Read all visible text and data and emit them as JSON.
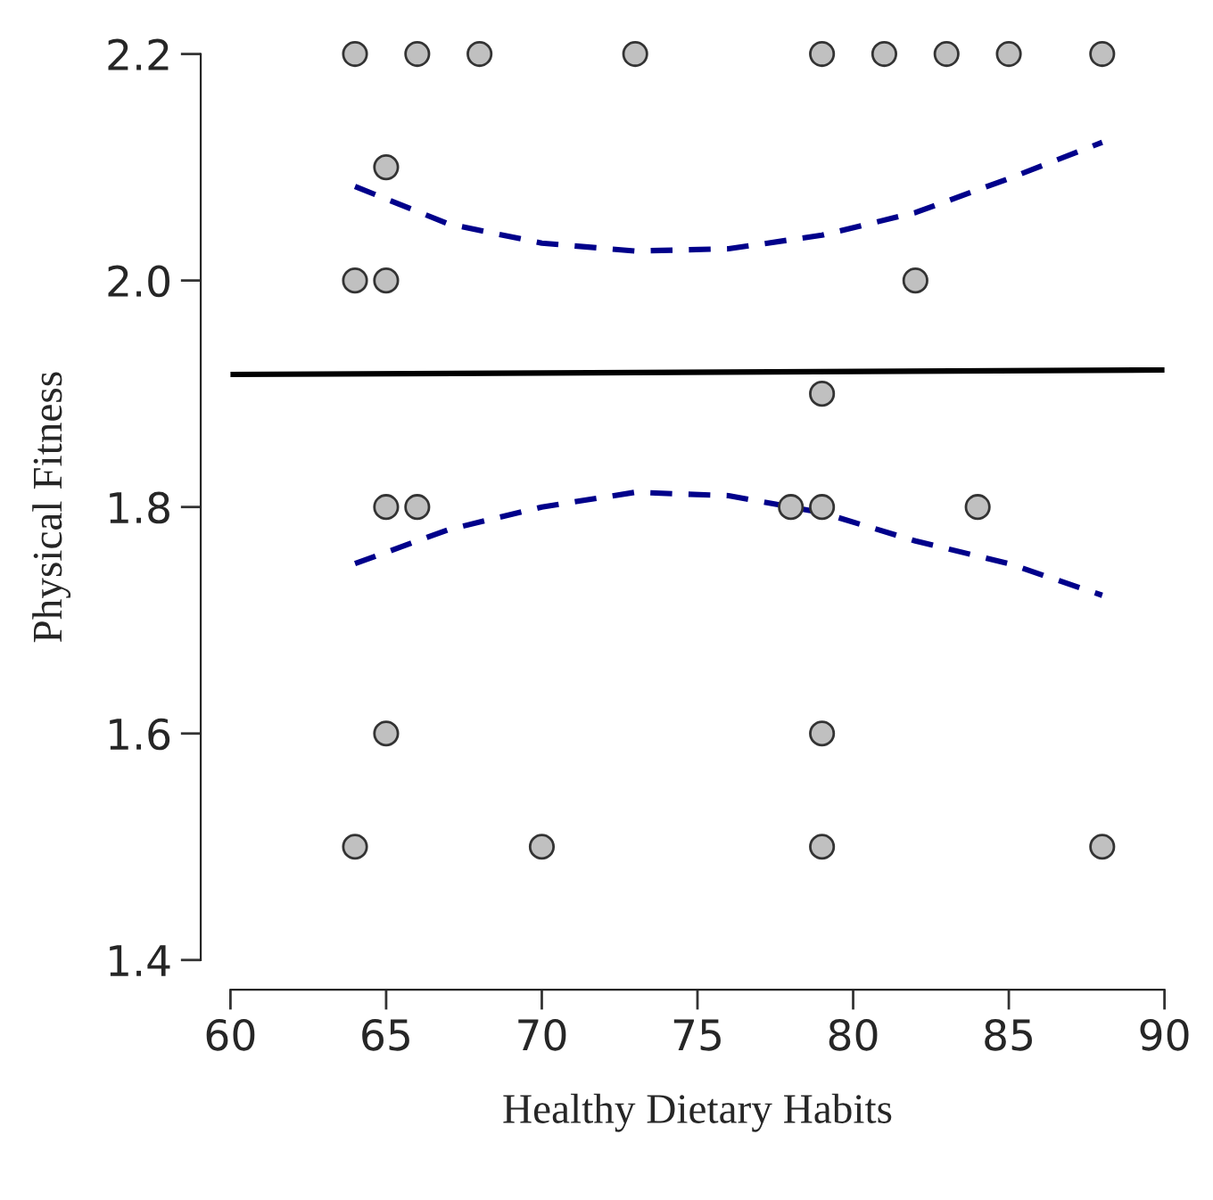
{
  "chart_data": {
    "type": "scatter",
    "xlabel": "Healthy Dietary Habits",
    "ylabel": "Physical Fitness",
    "xlim": [
      60,
      90
    ],
    "xticks": [
      60,
      65,
      70,
      75,
      80,
      85,
      90
    ],
    "ylim": [
      1.4,
      2.2
    ],
    "yticks": [
      1.4,
      1.6,
      1.8,
      {
        "value": 2.0,
        "label": "2.0"
      },
      2.2
    ],
    "grid": false,
    "legend": false,
    "series": [
      {
        "marker": "circle",
        "color": "#c0c0c0",
        "x": [
          64,
          66,
          68,
          73,
          79,
          81,
          83,
          85,
          88,
          65,
          64,
          65,
          82,
          79,
          65,
          66,
          78,
          79,
          84,
          65,
          79,
          64,
          70,
          79,
          88
        ],
        "values": [
          2.2,
          2.2,
          2.2,
          2.2,
          2.2,
          2.2,
          2.2,
          2.2,
          2.2,
          2.1,
          2.0,
          2.0,
          2.0,
          1.9,
          1.8,
          1.8,
          1.8,
          1.8,
          1.8,
          1.6,
          1.6,
          1.5,
          1.5,
          1.5,
          1.5
        ]
      },
      {
        "type": "line",
        "marker": "none",
        "color": "#000000",
        "line_style": "solid",
        "x": [
          60,
          90
        ],
        "values": [
          1.917,
          1.921
        ]
      },
      {
        "type": "line",
        "marker": "none",
        "color": "#00008b",
        "line_style": "dashed",
        "x": [
          64,
          67,
          70,
          73,
          76,
          79,
          82,
          85,
          88
        ],
        "values": [
          2.083,
          2.05,
          2.033,
          2.026,
          2.028,
          2.04,
          2.06,
          2.09,
          2.122
        ]
      },
      {
        "type": "line",
        "marker": "none",
        "color": "#00008b",
        "line_style": "dashed",
        "x": [
          64,
          67,
          70,
          73,
          76,
          79,
          82,
          85,
          88
        ],
        "values": [
          1.75,
          1.78,
          1.8,
          1.813,
          1.81,
          1.795,
          1.77,
          1.75,
          1.722
        ]
      }
    ]
  }
}
